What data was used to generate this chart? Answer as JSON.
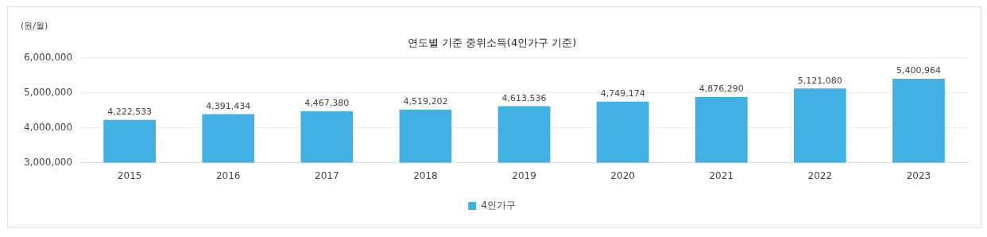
{
  "chart_data": {
    "type": "bar",
    "title": "연도별 기준 중위소득(4인가구 기준)",
    "ylabel": "(원/월)",
    "categories": [
      "2015",
      "2016",
      "2017",
      "2018",
      "2019",
      "2020",
      "2021",
      "2022",
      "2023"
    ],
    "series": [
      {
        "name": "4인가구",
        "color": "#41b1e3",
        "values": [
          4222533,
          4391434,
          4467380,
          4519202,
          4613536,
          4749174,
          4876290,
          5121080,
          5400964
        ],
        "value_labels": [
          "4,222,533",
          "4,391,434",
          "4,467,380",
          "4,519,202",
          "4,613,536",
          "4,749,174",
          "4,876,290",
          "5,121,080",
          "5,400,964"
        ]
      }
    ],
    "ylim": [
      3000000,
      6000000
    ],
    "yticks": [
      {
        "value": 3000000,
        "label": "3,000,000"
      },
      {
        "value": 4000000,
        "label": "4,000,000"
      },
      {
        "value": 5000000,
        "label": "5,000,000"
      },
      {
        "value": 6000000,
        "label": "6,000,000"
      }
    ],
    "grid": "y",
    "legend": "bottom"
  }
}
